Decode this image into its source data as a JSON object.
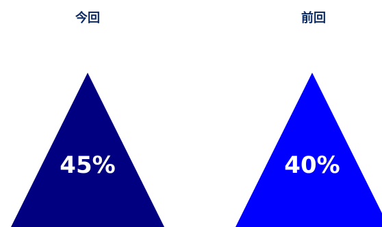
{
  "chart_data": [
    {
      "type": "other",
      "title": "今回",
      "value": 45,
      "label": "45%",
      "color": "#000080"
    },
    {
      "type": "other",
      "title": "前回",
      "value": 40,
      "label": "40%",
      "color": "#0000ff"
    }
  ]
}
